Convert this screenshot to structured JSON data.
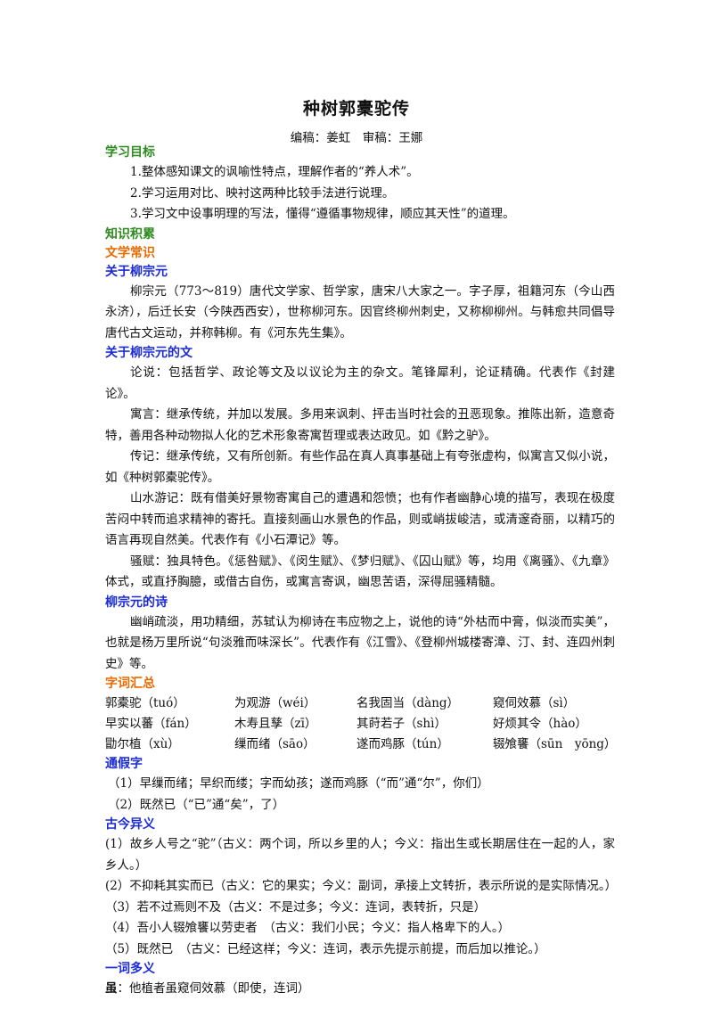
{
  "doc": {
    "title": "种树郭橐驼传",
    "authors": "编稿：姜虹　审稿：王娜"
  },
  "goals": {
    "heading": "学习目标",
    "items": [
      "1.整体感知课文的讽喻性特点，理解作者的“养人术”。",
      "2.学习运用对比、映衬这两种比较手法进行说理。",
      "3.学习文中设事明理的写法，懂得“遵循事物规律，顺应其天性”的道理。"
    ]
  },
  "knowledge": {
    "heading": "知识积累"
  },
  "literature": {
    "heading": "文学常识"
  },
  "about_author": {
    "heading": "关于柳宗元",
    "text": "柳宗元（773～819）唐代文学家、哲学家，唐宋八大家之一。字子厚，祖籍河东（今山西永济），后迁长安（今陕西西安），世称柳河东。因官终柳州刺史，又称柳柳州。与韩愈共同倡导唐代古文运动，并称韩柳。有《河东先生集》。"
  },
  "about_prose": {
    "heading": "关于柳宗元的文",
    "paras": [
      "论说：包括哲学、政论等文及以议论为主的杂文。笔锋犀利，论证精确。代表作《封建论》。",
      "寓言：继承传统，并加以发展。多用来讽刺、抨击当时社会的丑恶现象。推陈出新，造意奇特，善用各种动物拟人化的艺术形象寄寓哲理或表达政见。如《黔之驴》。",
      "传记：继承传统，又有所创新。有些作品在真人真事基础上有夸张虚构，似寓言又似小说，如《种树郭橐驼传》。",
      "山水游记：既有借美好景物寄寓自己的遭遇和怨愤；也有作者幽静心境的描写，表现在极度苦闷中转而追求精神的寄托。直接刻画山水景色的作品，则或峭拔峻洁，或清邃奇丽，以精巧的语言再现自然美。代表作有《小石潭记》等。",
      "骚赋：独具特色。《惩咎赋》、《闵生赋》、《梦归赋》、《囚山赋》等，均用《离骚》、《九章》体式，或直抒胸臆，或借古自伤，或寓言寄讽，幽思苦语，深得屈骚精髓。"
    ]
  },
  "about_poetry": {
    "heading": "柳宗元的诗",
    "text": "幽峭疏淡，用功精细，苏轼认为柳诗在韦应物之上，说他的诗“外枯而中膏，似淡而实美”，也就是杨万里所说“句淡雅而味深长”。代表作有《江雪》、《登柳州城楼寄漳、汀、封、连四州刺史》等。"
  },
  "vocab": {
    "heading": "字词汇总",
    "rows": [
      [
        "郭橐驼（tuó）",
        "为观游（wéi）",
        "名我固当（dàng）",
        "窥伺效慕（sì）"
      ],
      [
        "早实以蕃（fán）",
        "木寿且孳（zī）",
        "其莳若子（shì）",
        "好烦其令（hào）"
      ],
      [
        "勖尔植（xù）",
        "缫而绪（sāo）",
        "遂而鸡豚（tún）",
        "辍飧饔（sūn　yōng）"
      ]
    ]
  },
  "tongjia": {
    "heading": "通假字",
    "items": [
      "（1）早缫而绪；早织而缕；字而幼孩；遂而鸡豚（“而”通“尔”，你们）",
      "（2）既然已（“已”通“矣”，了）"
    ]
  },
  "gujin": {
    "heading": "古今异义",
    "items": [
      "(1）故乡人号之“驼”（古义：两个词，所以乡里的人；今义：指出生或长期居住在一起的人，家乡人。）",
      "(2）不抑耗其实而已（古义：它的果实；今义：副词，承接上文转折，表示所说的是实际情况。）",
      "（3）若不过焉则不及（古义：不是过多；今义：连词，表转折，只是）",
      "（4）吾小人辍飧饔以劳吏者　（古义：我们小民；今义：指人格卑下的人。）",
      "（5）既然已　（古义：已经这样；今义：连词，表示先提示前提，而后加以推论。）"
    ]
  },
  "yici": {
    "heading": "一词多义",
    "label": "虽",
    "text": "：他植者虽窥伺效慕（即使，连词）"
  }
}
